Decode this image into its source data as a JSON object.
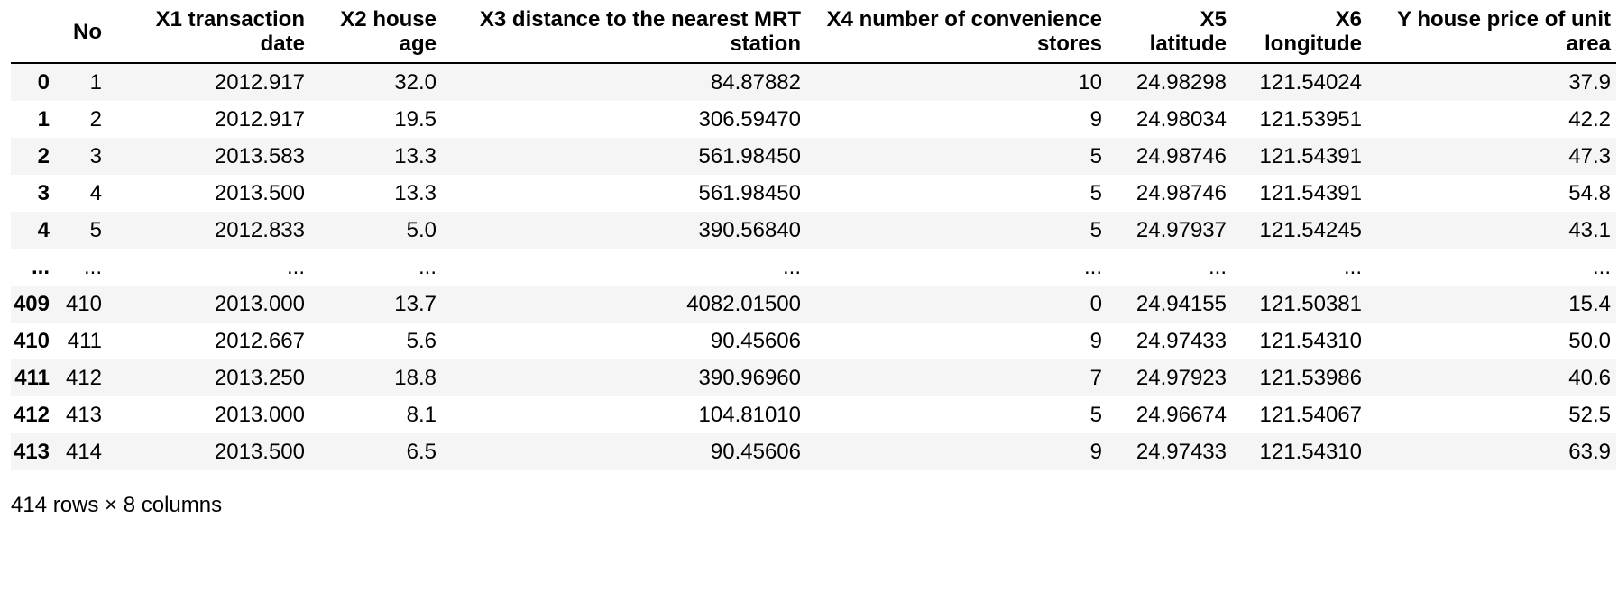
{
  "table": {
    "index_header": "",
    "columns": [
      {
        "label": "No"
      },
      {
        "label": "X1 transaction\ndate"
      },
      {
        "label": "X2 house\nage"
      },
      {
        "label": "X3 distance to the nearest MRT\nstation"
      },
      {
        "label": "X4 number of convenience\nstores"
      },
      {
        "label": "X5\nlatitude"
      },
      {
        "label": "X6\nlongitude"
      },
      {
        "label": "Y house price of unit\narea"
      }
    ],
    "rows": [
      {
        "index": "0",
        "cells": [
          "1",
          "2012.917",
          "32.0",
          "84.87882",
          "10",
          "24.98298",
          "121.54024",
          "37.9"
        ]
      },
      {
        "index": "1",
        "cells": [
          "2",
          "2012.917",
          "19.5",
          "306.59470",
          "9",
          "24.98034",
          "121.53951",
          "42.2"
        ]
      },
      {
        "index": "2",
        "cells": [
          "3",
          "2013.583",
          "13.3",
          "561.98450",
          "5",
          "24.98746",
          "121.54391",
          "47.3"
        ]
      },
      {
        "index": "3",
        "cells": [
          "4",
          "2013.500",
          "13.3",
          "561.98450",
          "5",
          "24.98746",
          "121.54391",
          "54.8"
        ]
      },
      {
        "index": "4",
        "cells": [
          "5",
          "2012.833",
          "5.0",
          "390.56840",
          "5",
          "24.97937",
          "121.54245",
          "43.1"
        ]
      },
      {
        "index": "...",
        "cells": [
          "...",
          "...",
          "...",
          "...",
          "...",
          "...",
          "...",
          "..."
        ]
      },
      {
        "index": "409",
        "cells": [
          "410",
          "2013.000",
          "13.7",
          "4082.01500",
          "0",
          "24.94155",
          "121.50381",
          "15.4"
        ]
      },
      {
        "index": "410",
        "cells": [
          "411",
          "2012.667",
          "5.6",
          "90.45606",
          "9",
          "24.97433",
          "121.54310",
          "50.0"
        ]
      },
      {
        "index": "411",
        "cells": [
          "412",
          "2013.250",
          "18.8",
          "390.96960",
          "7",
          "24.97923",
          "121.53986",
          "40.6"
        ]
      },
      {
        "index": "412",
        "cells": [
          "413",
          "2013.000",
          "8.1",
          "104.81010",
          "5",
          "24.96674",
          "121.54067",
          "52.5"
        ]
      },
      {
        "index": "413",
        "cells": [
          "414",
          "2013.500",
          "6.5",
          "90.45606",
          "9",
          "24.97433",
          "121.54310",
          "63.9"
        ]
      }
    ],
    "footer": "414 rows × 8 columns"
  },
  "colors": {
    "stripe": "#f5f5f5",
    "header_border": "#000000",
    "text": "#000000",
    "background": "#ffffff"
  }
}
